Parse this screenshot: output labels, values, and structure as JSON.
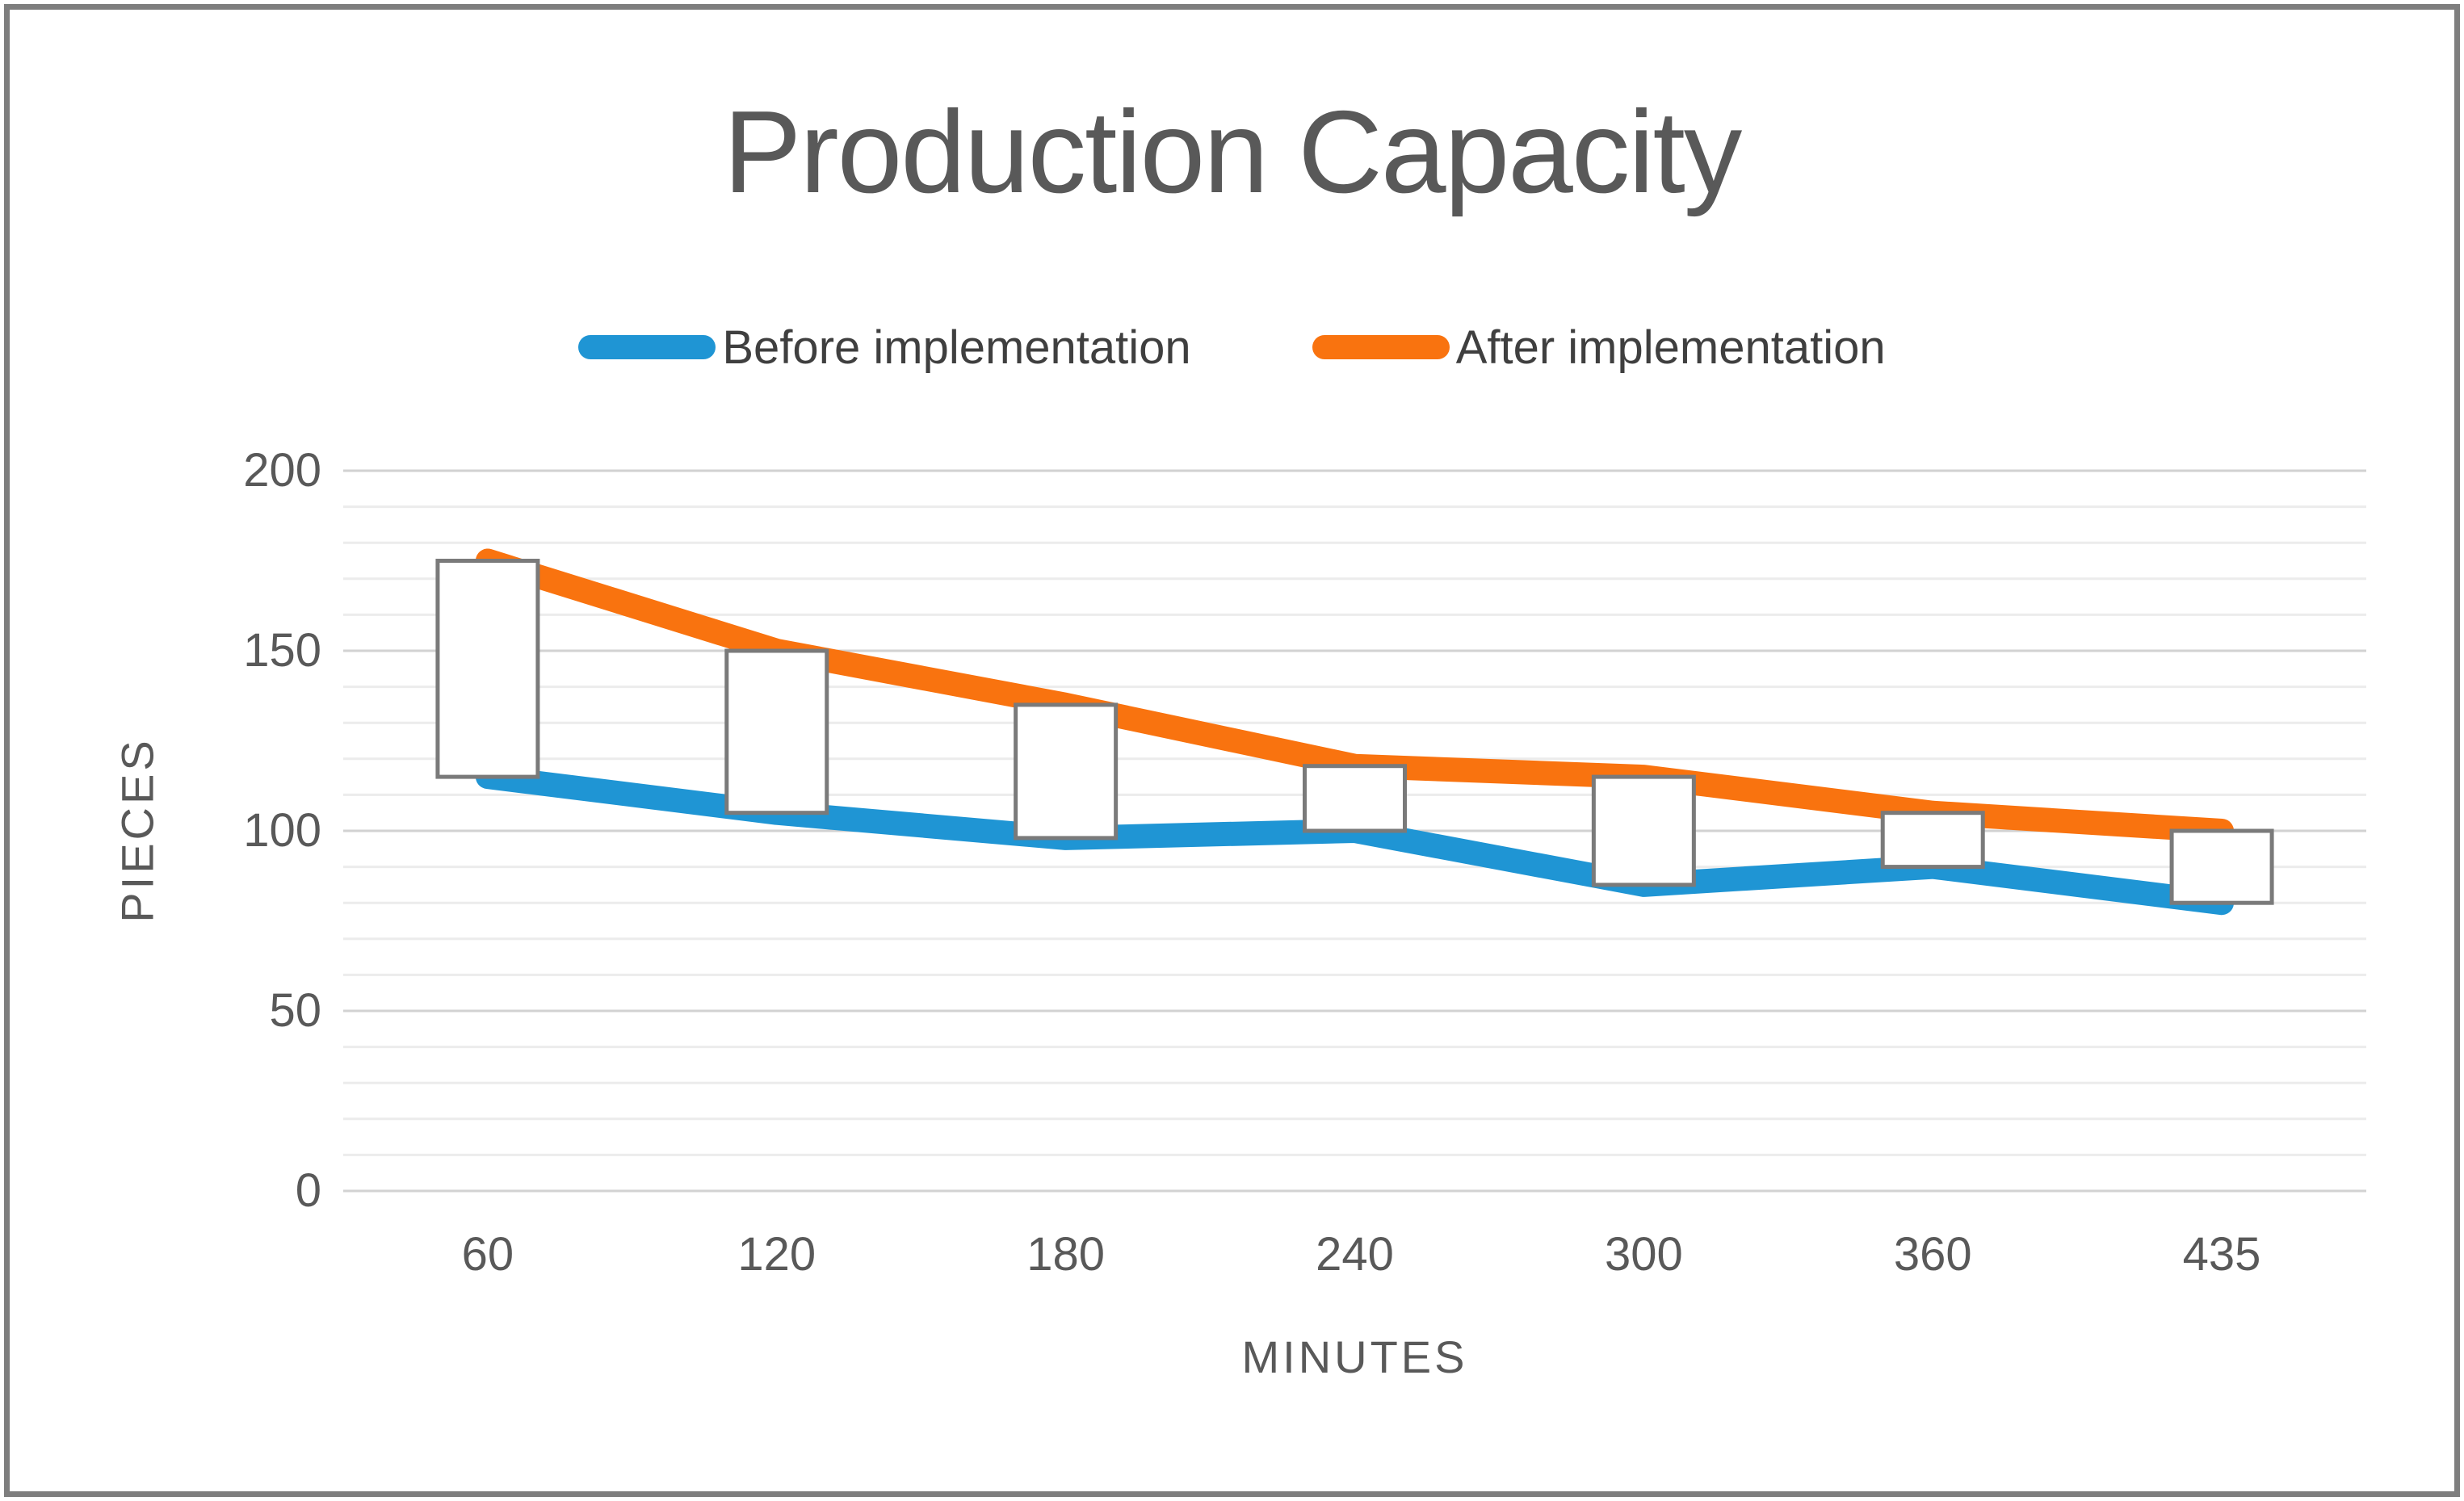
{
  "title": "Production Capacity",
  "axes": {
    "x_title": "MINUTES",
    "y_title": "PIECES"
  },
  "colors": {
    "before_line": "#1F95D4",
    "after_line": "#F9730F",
    "updown_bar_fill": "#FFFFFF",
    "updown_bar_border": "#7A7A7A",
    "minor_gridline": "#ECECEC",
    "major_gridline": "#D2D2D2",
    "text": "#595959",
    "frame_border": "#7E7E7E"
  },
  "chart_data": {
    "type": "line",
    "title": "Production Capacity",
    "categories": [
      "60",
      "120",
      "180",
      "240",
      "300",
      "360",
      "435"
    ],
    "series": [
      {
        "name": "Before implementation",
        "color": "#1F95D4",
        "values": [
          115,
          105,
          98,
          100,
          85,
          90,
          80
        ]
      },
      {
        "name": "After implementation",
        "color": "#F9730F",
        "values": [
          175,
          150,
          135,
          118,
          115,
          105,
          100
        ]
      }
    ],
    "xlabel": "MINUTES",
    "ylabel": "PIECES",
    "ylim": [
      0,
      200
    ],
    "y_major_ticks": [
      200,
      150,
      100,
      50,
      0
    ],
    "y_minor_step": 10,
    "grid": true,
    "legend_position": "top",
    "updown_bars": true
  }
}
